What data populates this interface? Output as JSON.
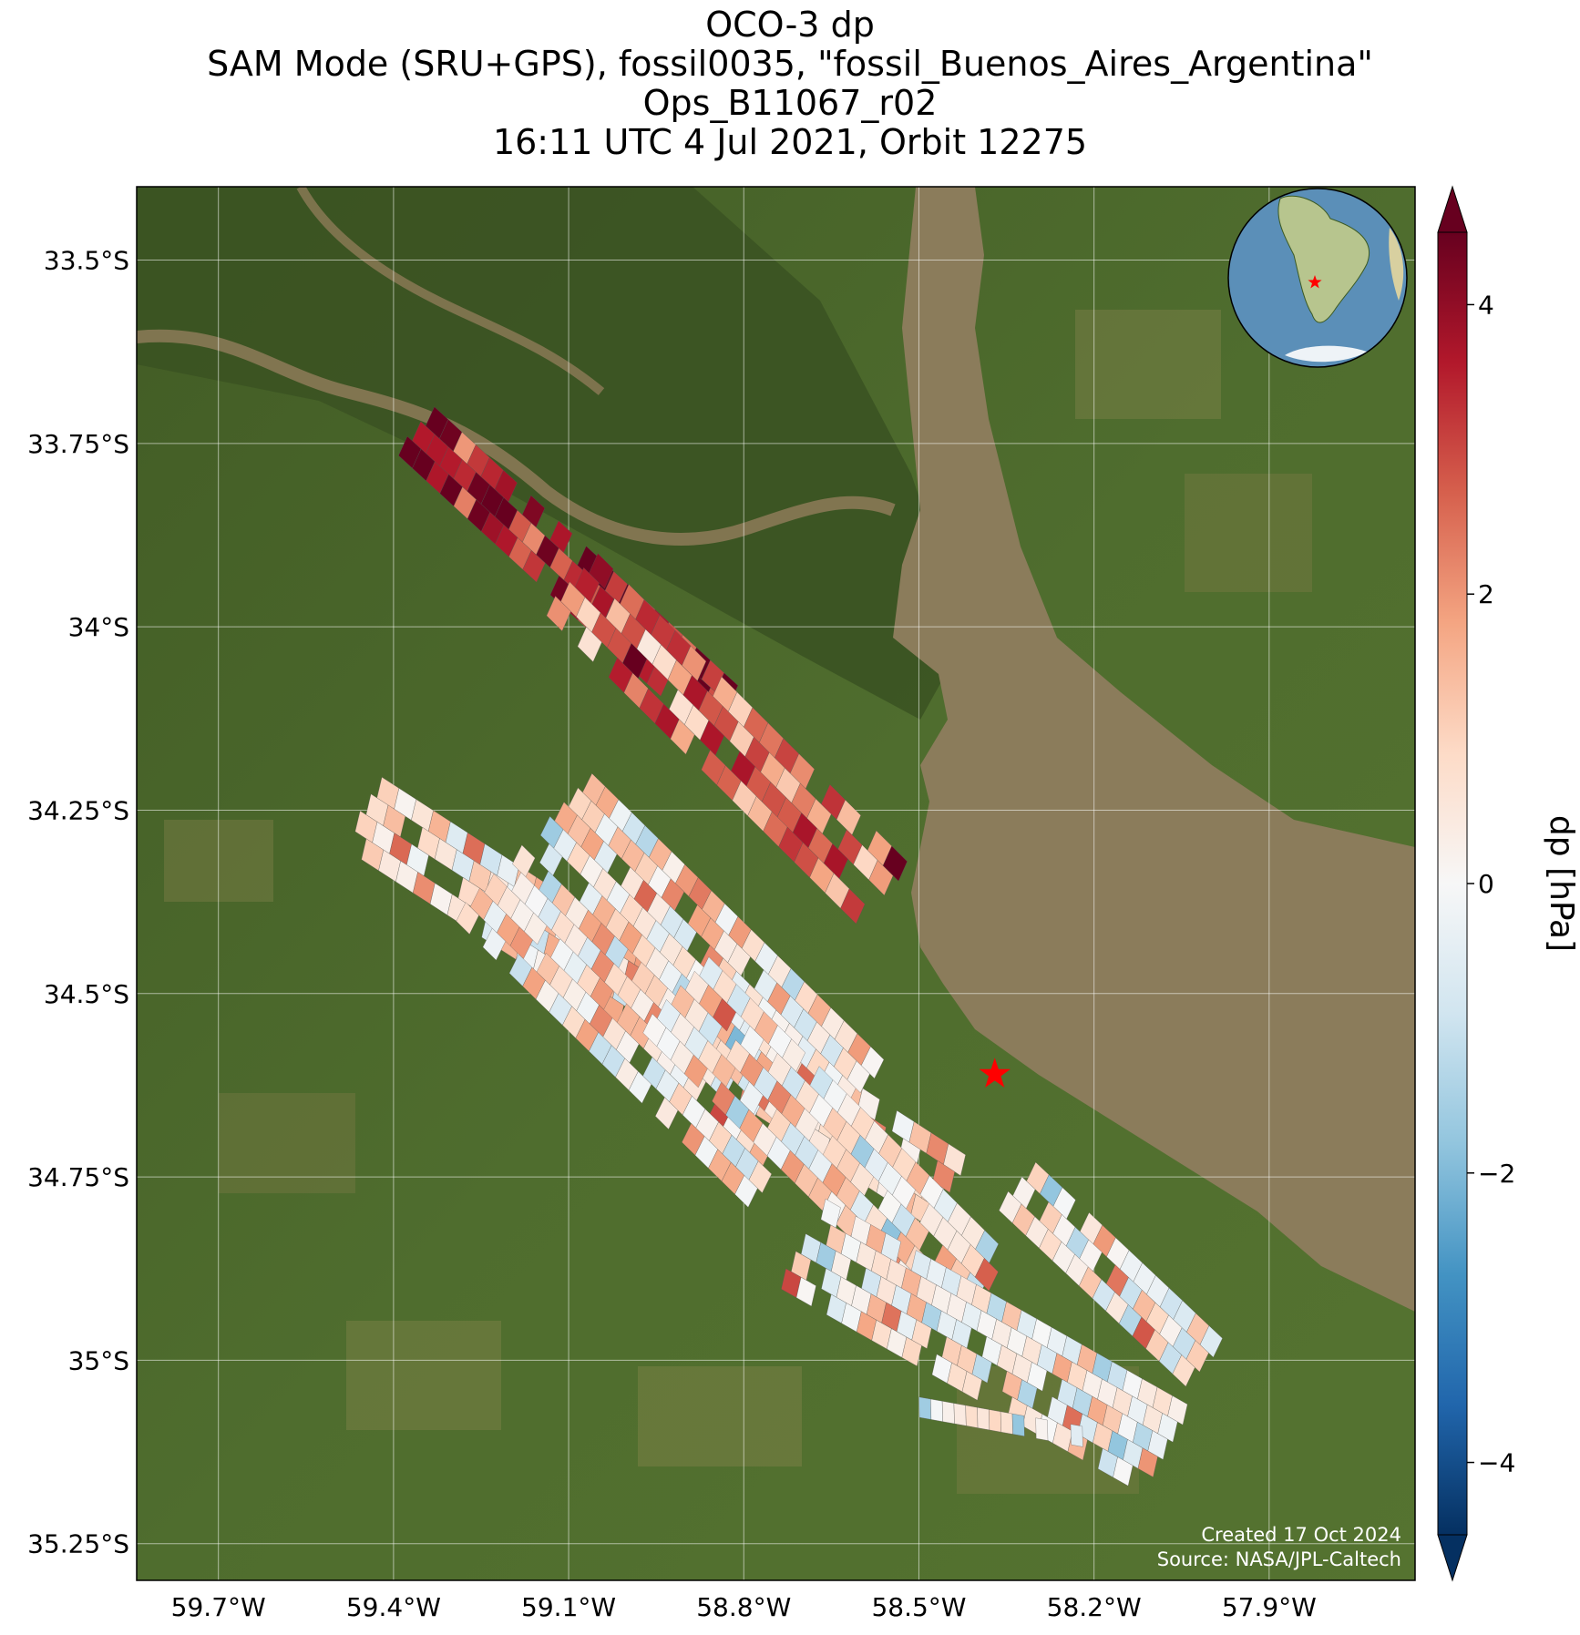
{
  "title_lines": [
    "OCO-3 dp",
    "SAM Mode (SRU+GPS), fossil0035, \"fossil_Buenos_Aires_Argentina\"",
    "Ops_B11067_r02",
    "16:11 UTC 4 Jul 2021, Orbit 12275"
  ],
  "map": {
    "lon_range": [
      -59.84,
      -57.65
    ],
    "lat_range": [
      -35.3,
      -33.4
    ],
    "lat_ticks": [
      {
        "value": -33.5,
        "label": "33.5°S"
      },
      {
        "value": -33.75,
        "label": "33.75°S"
      },
      {
        "value": -34.0,
        "label": "34°S"
      },
      {
        "value": -34.25,
        "label": "34.25°S"
      },
      {
        "value": -34.5,
        "label": "34.5°S"
      },
      {
        "value": -34.75,
        "label": "34.75°S"
      },
      {
        "value": -35.0,
        "label": "35°S"
      },
      {
        "value": -35.25,
        "label": "35.25°S"
      }
    ],
    "lon_ticks": [
      {
        "value": -59.7,
        "label": "59.7°W"
      },
      {
        "value": -59.4,
        "label": "59.4°W"
      },
      {
        "value": -59.1,
        "label": "59.1°W"
      },
      {
        "value": -58.8,
        "label": "58.8°W"
      },
      {
        "value": -58.5,
        "label": "58.5°W"
      },
      {
        "value": -58.2,
        "label": "58.2°W"
      },
      {
        "value": -57.9,
        "label": "57.9°W"
      }
    ],
    "target_marker": {
      "lon": -58.37,
      "lat": -34.61,
      "color": "#ff0000"
    },
    "credit_lines": [
      "Created 17 Oct 2024",
      "Source: NASA/JPL-Caltech"
    ],
    "colors": {
      "land": "#4a6a2c",
      "water": "#8a7a5a",
      "delta": "#3f5a26"
    }
  },
  "colorbar": {
    "label": "dp [hPa]",
    "min": -4.5,
    "max": 4.5,
    "extend": "both",
    "ticks": [
      {
        "value": 4,
        "label": "4"
      },
      {
        "value": 2,
        "label": "2"
      },
      {
        "value": 0,
        "label": "0"
      },
      {
        "value": -2,
        "label": "−2"
      },
      {
        "value": -4,
        "label": "−4"
      }
    ],
    "colormap": "RdBu_r"
  },
  "chart_data": {
    "type": "heatmap",
    "title": "OCO-3 dp",
    "variable": "dp",
    "units": "hPa",
    "value_range": [
      -4.5,
      4.5
    ],
    "swaths": [
      {
        "start": [
          -59.42,
          -34.205
        ],
        "end": [
          -58.42,
          -34.72
        ],
        "rows": 4,
        "cols": 34,
        "mean_dp": 1.0
      },
      {
        "start": [
          -59.06,
          -34.2
        ],
        "end": [
          -58.56,
          -34.59
        ],
        "rows": 10,
        "cols": 22,
        "mean_dp": 0.6
      },
      {
        "start": [
          -59.33,
          -33.7
        ],
        "end": [
          -58.81,
          -34.08
        ],
        "rows": 3,
        "cols": 22,
        "mean_dp": 3.8
      },
      {
        "start": [
          -59.05,
          -33.9
        ],
        "end": [
          -58.52,
          -34.32
        ],
        "rows": 4,
        "cols": 20,
        "mean_dp": 2.5
      },
      {
        "start": [
          -58.86,
          -34.45
        ],
        "end": [
          -58.34,
          -34.86
        ],
        "rows": 5,
        "cols": 22,
        "mean_dp": 0.5
      },
      {
        "start": [
          -58.66,
          -34.78
        ],
        "end": [
          -58.04,
          -35.06
        ],
        "rows": 5,
        "cols": 24,
        "mean_dp": 0.3
      },
      {
        "start": [
          -58.3,
          -34.73
        ],
        "end": [
          -57.98,
          -34.97
        ],
        "rows": 3,
        "cols": 14,
        "mean_dp": 0.2
      },
      {
        "start": [
          -58.5,
          -35.05
        ],
        "end": [
          -58.22,
          -35.09
        ],
        "rows": 1,
        "cols": 14,
        "mean_dp": 0.4
      }
    ]
  }
}
